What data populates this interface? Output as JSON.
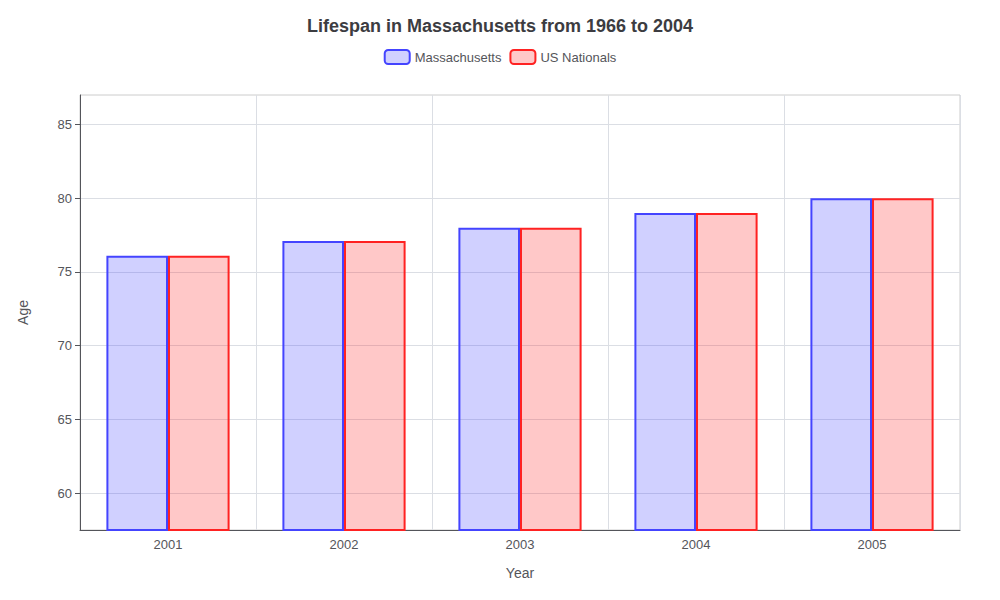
{
  "chart_data": {
    "type": "bar",
    "title": "Lifespan in Massachusetts from 1966 to 2004",
    "x_label": "Year",
    "y_label": "Age",
    "categories": [
      "2001",
      "2002",
      "2003",
      "2004",
      "2005"
    ],
    "series": [
      {
        "name": "Massachusetts",
        "color": "#4444ff",
        "values": [
          76.1,
          77.1,
          78.0,
          79.0,
          80.0
        ]
      },
      {
        "name": "US Nationals",
        "color": "#ff2222",
        "values": [
          76.1,
          77.1,
          78.0,
          79.0,
          80.0
        ]
      }
    ],
    "ylim": [
      57.5,
      87
    ],
    "yticks": [
      60,
      65,
      70,
      75,
      80,
      85
    ],
    "grid": true,
    "legend": "top"
  }
}
